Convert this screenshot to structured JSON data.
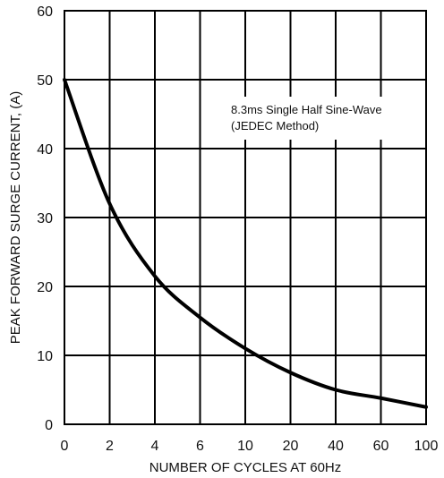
{
  "chart_data": {
    "type": "line",
    "xlabel": "NUMBER OF CYCLES AT 60Hz",
    "ylabel": "PEAK FORWARD SURGE CURRENT, (A)",
    "x_ticks": [
      "0",
      "2",
      "4",
      "6",
      "10",
      "20",
      "40",
      "60",
      "100"
    ],
    "y_ticks": [
      0,
      10,
      20,
      30,
      40,
      50,
      60
    ],
    "ylim": [
      0,
      60
    ],
    "grid": true,
    "annotation": [
      "8.3ms Single Half Sine-Wave",
      "(JEDEC Method)"
    ],
    "series": [
      {
        "x": [
          "0",
          "2",
          "4",
          "6",
          "10",
          "20",
          "40",
          "60",
          "100"
        ],
        "values": [
          50,
          32,
          21.5,
          15.5,
          11,
          7.5,
          5,
          3.8,
          2.5
        ]
      }
    ]
  }
}
